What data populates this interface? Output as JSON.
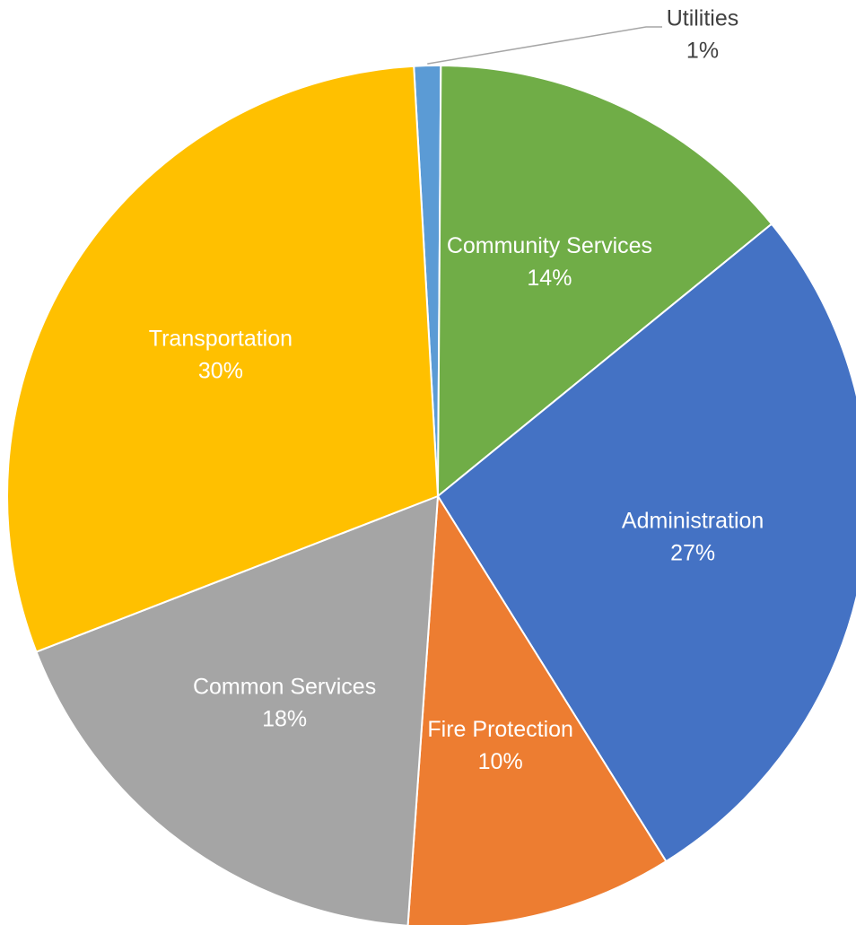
{
  "chart_data": {
    "type": "pie",
    "title": "",
    "slices": [
      {
        "label": "Utilities",
        "value": 1,
        "value_label": "1%",
        "color": "#5B9BD5",
        "label_color": "#404040",
        "label_outside": true
      },
      {
        "label": "Community Services",
        "value": 14,
        "value_label": "14%",
        "color": "#70AD47",
        "label_color": "#ffffff"
      },
      {
        "label": "Administration",
        "value": 27,
        "value_label": "27%",
        "color": "#4472C4",
        "label_color": "#ffffff"
      },
      {
        "label": "Fire Protection",
        "value": 10,
        "value_label": "10%",
        "color": "#ED7D31",
        "label_color": "#ffffff"
      },
      {
        "label": "Common Services",
        "value": 18,
        "value_label": "18%",
        "color": "#A5A5A5",
        "label_color": "#ffffff"
      },
      {
        "label": "Transportation",
        "value": 30,
        "value_label": "30%",
        "color": "#FFC000",
        "label_color": "#ffffff"
      }
    ],
    "start_angle_deg": -3.2,
    "direction": "clockwise",
    "legend": "none",
    "data_labels": "category and percentage"
  }
}
